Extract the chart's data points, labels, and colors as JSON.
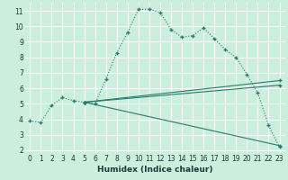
{
  "xlabel": "Humidex (Indice chaleur)",
  "bg_color": "#cceedd",
  "line_color": "#2a7a6a",
  "grid_color": "#ffffff",
  "xlim": [
    -0.5,
    23.5
  ],
  "ylim": [
    1.8,
    11.5
  ],
  "xticks": [
    0,
    1,
    2,
    3,
    4,
    5,
    6,
    7,
    8,
    9,
    10,
    11,
    12,
    13,
    14,
    15,
    16,
    17,
    18,
    19,
    20,
    21,
    22,
    23
  ],
  "yticks": [
    2,
    3,
    4,
    5,
    6,
    7,
    8,
    9,
    10,
    11
  ],
  "series": [
    {
      "x": [
        0,
        1,
        2,
        3,
        4,
        5,
        6,
        7,
        8,
        9,
        10,
        11,
        12,
        13,
        14,
        15,
        16,
        17,
        18,
        19,
        20,
        21,
        22,
        23
      ],
      "y": [
        3.9,
        3.8,
        4.9,
        5.4,
        5.2,
        5.1,
        5.0,
        6.6,
        8.3,
        9.6,
        11.1,
        11.1,
        10.9,
        9.8,
        9.3,
        9.4,
        9.9,
        9.2,
        8.5,
        8.0,
        6.9,
        5.7,
        3.6,
        2.2
      ]
    },
    {
      "x": [
        5,
        23
      ],
      "y": [
        5.1,
        6.5
      ]
    },
    {
      "x": [
        5,
        23
      ],
      "y": [
        5.1,
        6.2
      ]
    },
    {
      "x": [
        5,
        23
      ],
      "y": [
        5.1,
        2.3
      ]
    }
  ]
}
